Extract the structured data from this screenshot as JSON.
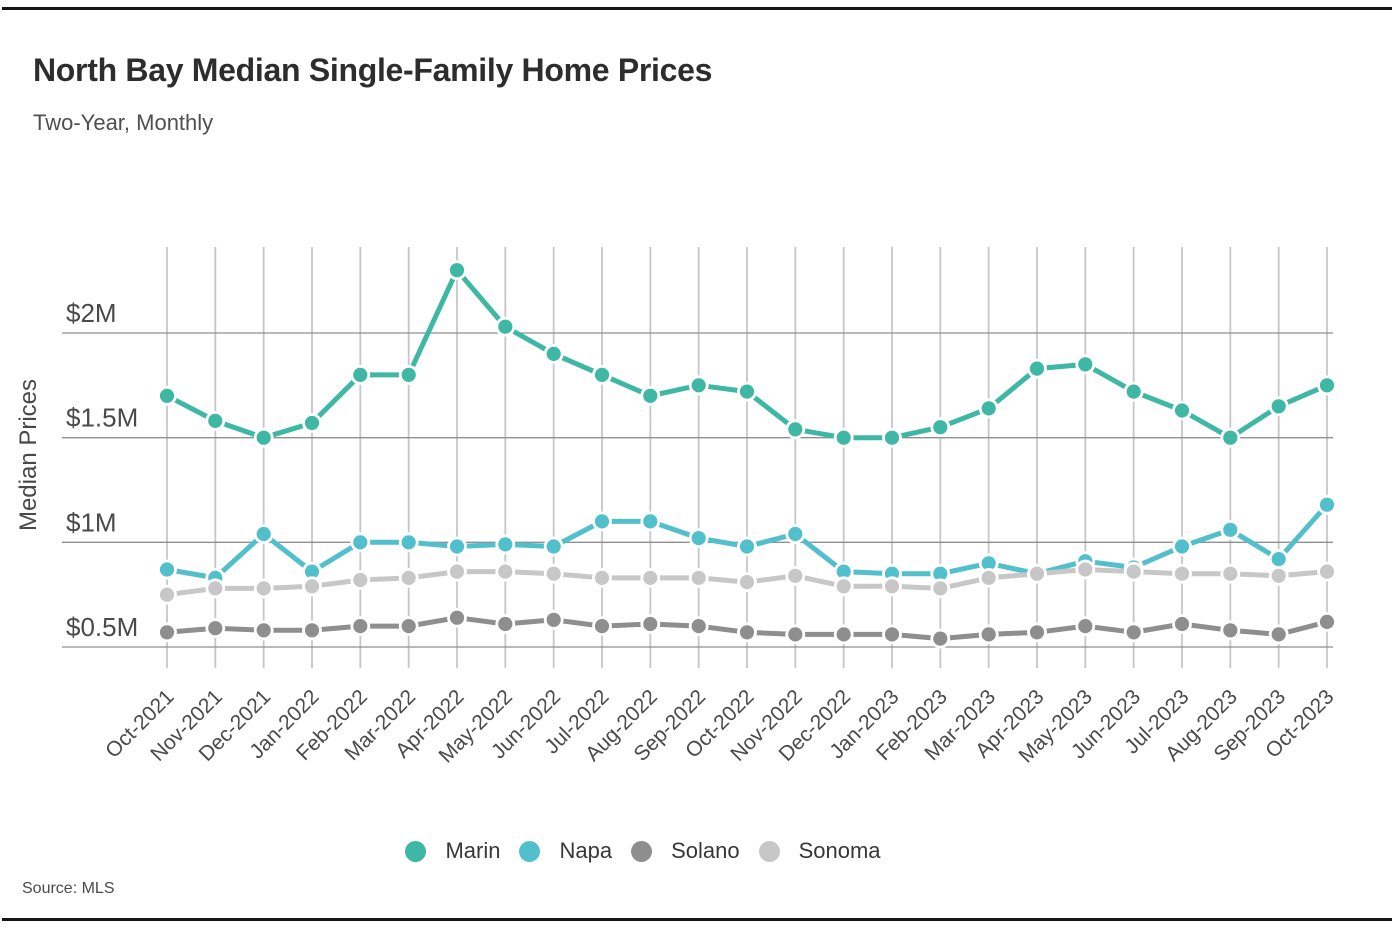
{
  "page": {
    "source_text": "Source: MLS"
  },
  "chart_data": {
    "type": "line",
    "title": "North Bay Median Single-Family Home Prices",
    "subtitle": "Two-Year, Monthly",
    "ylabel": "Median Prices",
    "xlabel": "",
    "unit": "USD millions",
    "source": "MLS",
    "grid": "horizontal-and-vertical",
    "legend_position": "bottom",
    "x_categories": [
      "Oct-2021",
      "Nov-2021",
      "Dec-2021",
      "Jan-2022",
      "Feb-2022",
      "Mar-2022",
      "Apr-2022",
      "May-2022",
      "Jun-2022",
      "Jul-2022",
      "Aug-2022",
      "Sep-2022",
      "Oct-2022",
      "Nov-2022",
      "Dec-2022",
      "Jan-2023",
      "Feb-2023",
      "Mar-2023",
      "Apr-2023",
      "May-2023",
      "Jun-2023",
      "Jul-2023",
      "Aug-2023",
      "Sep-2023",
      "Oct-2023"
    ],
    "y_axis": {
      "tick_labels": [
        "$0.5M",
        "$1M",
        "$1.5M",
        "$2M"
      ],
      "tick_values": [
        0.5,
        1.0,
        1.5,
        2.0
      ],
      "range": [
        0.4,
        2.4
      ]
    },
    "series": [
      {
        "name": "Marin",
        "color": "#3eb8a4",
        "values": [
          1.7,
          1.58,
          1.5,
          1.57,
          1.8,
          1.8,
          2.3,
          2.03,
          1.9,
          1.8,
          1.7,
          1.75,
          1.72,
          1.54,
          1.5,
          1.5,
          1.55,
          1.64,
          1.83,
          1.85,
          1.72,
          1.63,
          1.5,
          1.65,
          1.75
        ]
      },
      {
        "name": "Napa",
        "color": "#52bfcd",
        "values": [
          0.87,
          0.83,
          1.04,
          0.86,
          1.0,
          1.0,
          0.98,
          0.99,
          0.98,
          1.1,
          1.1,
          1.02,
          0.98,
          1.04,
          0.86,
          0.85,
          0.85,
          0.9,
          0.85,
          0.91,
          0.88,
          0.98,
          1.06,
          0.92,
          1.18
        ]
      },
      {
        "name": "Solano",
        "color": "#8e8e8e",
        "values": [
          0.57,
          0.59,
          0.58,
          0.58,
          0.6,
          0.6,
          0.64,
          0.61,
          0.63,
          0.6,
          0.61,
          0.6,
          0.57,
          0.56,
          0.56,
          0.56,
          0.54,
          0.56,
          0.57,
          0.6,
          0.57,
          0.61,
          0.58,
          0.56,
          0.62
        ]
      },
      {
        "name": "Sonoma",
        "color": "#c7c7c7",
        "values": [
          0.75,
          0.78,
          0.78,
          0.79,
          0.82,
          0.83,
          0.86,
          0.86,
          0.85,
          0.83,
          0.83,
          0.83,
          0.81,
          0.84,
          0.79,
          0.79,
          0.78,
          0.83,
          0.85,
          0.87,
          0.86,
          0.85,
          0.85,
          0.84,
          0.86
        ]
      }
    ]
  }
}
